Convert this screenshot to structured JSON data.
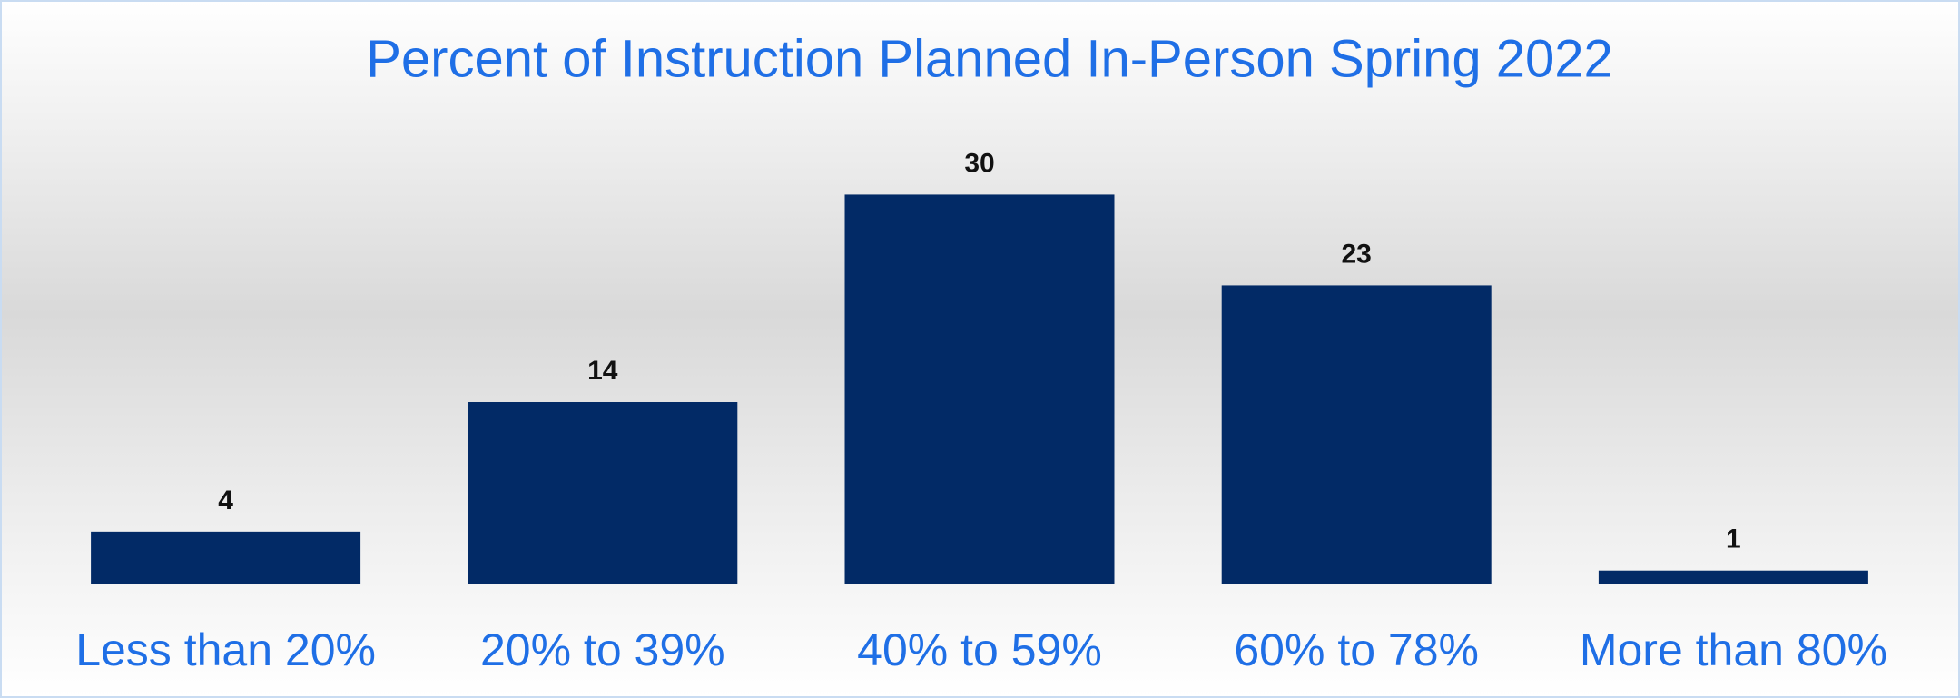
{
  "chart_data": {
    "type": "bar",
    "title": "Percent of Instruction Planned In-Person Spring 2022",
    "categories": [
      "Less than 20%",
      "20% to 39%",
      "40% to 59%",
      "60% to 78%",
      "More than 80%"
    ],
    "values": [
      4,
      14,
      30,
      23,
      1
    ],
    "color": "#022a66",
    "ylim": [
      0,
      35
    ],
    "grid": false
  }
}
